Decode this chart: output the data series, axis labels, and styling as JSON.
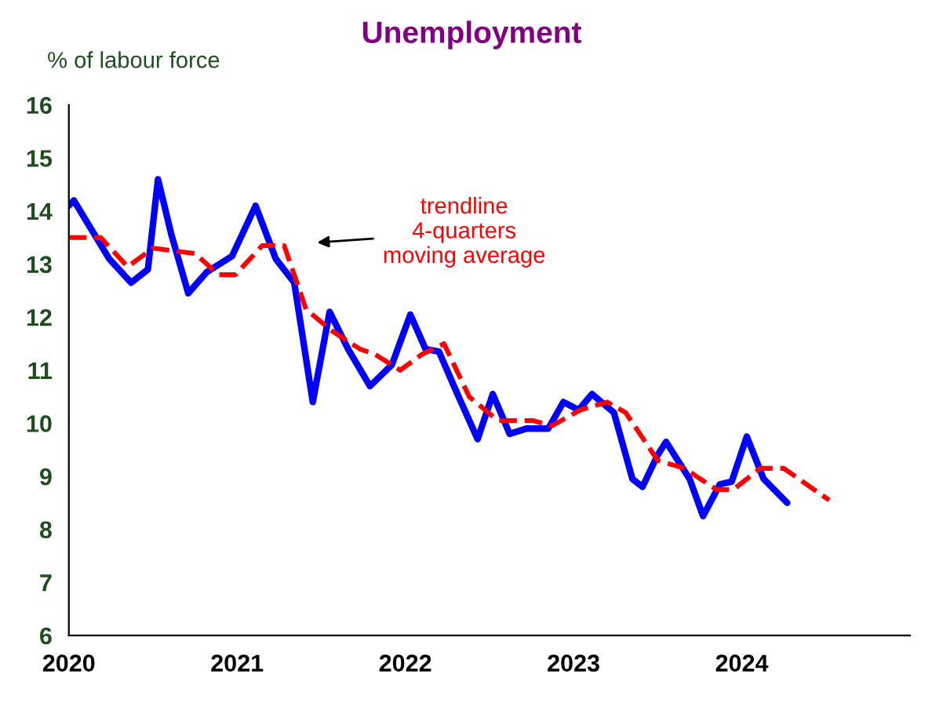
{
  "chart_data": {
    "type": "line",
    "title": "Unemployment",
    "ylabel": "% of labour force",
    "xlim": [
      2020,
      2025
    ],
    "xticks": [
      {
        "value": 2020,
        "label": "2020"
      },
      {
        "value": 2021,
        "label": "2021"
      },
      {
        "value": 2022,
        "label": "2022"
      },
      {
        "value": 2023,
        "label": "2023"
      },
      {
        "value": 2024,
        "label": "2024"
      }
    ],
    "ylim": [
      6,
      16
    ],
    "yticks": [
      6,
      7,
      8,
      9,
      10,
      11,
      12,
      13,
      14,
      15,
      16
    ],
    "grid": false,
    "legend": false,
    "series": [
      {
        "color": "#0000ff",
        "line_style": "solid",
        "x": [
          2020.0,
          2020.03,
          2020.24,
          2020.37,
          2020.47,
          2020.53,
          2020.61,
          2020.71,
          2020.82,
          2020.97,
          2021.11,
          2021.23,
          2021.34,
          2021.45,
          2021.55,
          2021.66,
          2021.79,
          2021.92,
          2022.03,
          2022.12,
          2022.2,
          2022.31,
          2022.43,
          2022.52,
          2022.62,
          2022.72,
          2022.85,
          2022.94,
          2023.03,
          2023.11,
          2023.24,
          2023.35,
          2023.41,
          2023.5,
          2023.55,
          2023.69,
          2023.77,
          2023.87,
          2023.94,
          2024.03,
          2024.13,
          2024.27
        ],
        "values": [
          14.1,
          14.2,
          13.1,
          12.65,
          12.9,
          14.6,
          13.55,
          12.45,
          12.85,
          13.15,
          14.1,
          13.1,
          12.65,
          10.4,
          12.1,
          11.4,
          10.7,
          11.1,
          12.05,
          11.4,
          11.35,
          10.55,
          9.7,
          10.55,
          9.8,
          9.9,
          9.9,
          10.4,
          10.25,
          10.55,
          10.2,
          8.95,
          8.8,
          9.4,
          9.65,
          8.95,
          8.25,
          8.85,
          8.9,
          9.75,
          8.95,
          8.5
        ]
      },
      {
        "color": "#ff0000",
        "line_style": "dashed",
        "x": [
          2020.0,
          2020.19,
          2020.35,
          2020.5,
          2020.75,
          2020.89,
          2020.99,
          2021.15,
          2021.28,
          2021.41,
          2021.56,
          2021.73,
          2021.82,
          2021.97,
          2022.1,
          2022.23,
          2022.38,
          2022.55,
          2022.76,
          2022.87,
          2023.04,
          2023.2,
          2023.31,
          2023.5,
          2023.66,
          2023.85,
          2023.95,
          2024.11,
          2024.25,
          2024.52
        ],
        "values": [
          13.5,
          13.5,
          12.95,
          13.3,
          13.2,
          12.8,
          12.8,
          13.35,
          13.35,
          12.15,
          11.75,
          11.4,
          11.3,
          11.0,
          11.3,
          11.5,
          10.5,
          10.05,
          10.05,
          9.95,
          10.25,
          10.4,
          10.2,
          9.3,
          9.15,
          8.75,
          8.75,
          9.15,
          9.15,
          8.55
        ]
      }
    ],
    "annotations": [
      "trendline\n4-quarters\nmoving average"
    ]
  }
}
